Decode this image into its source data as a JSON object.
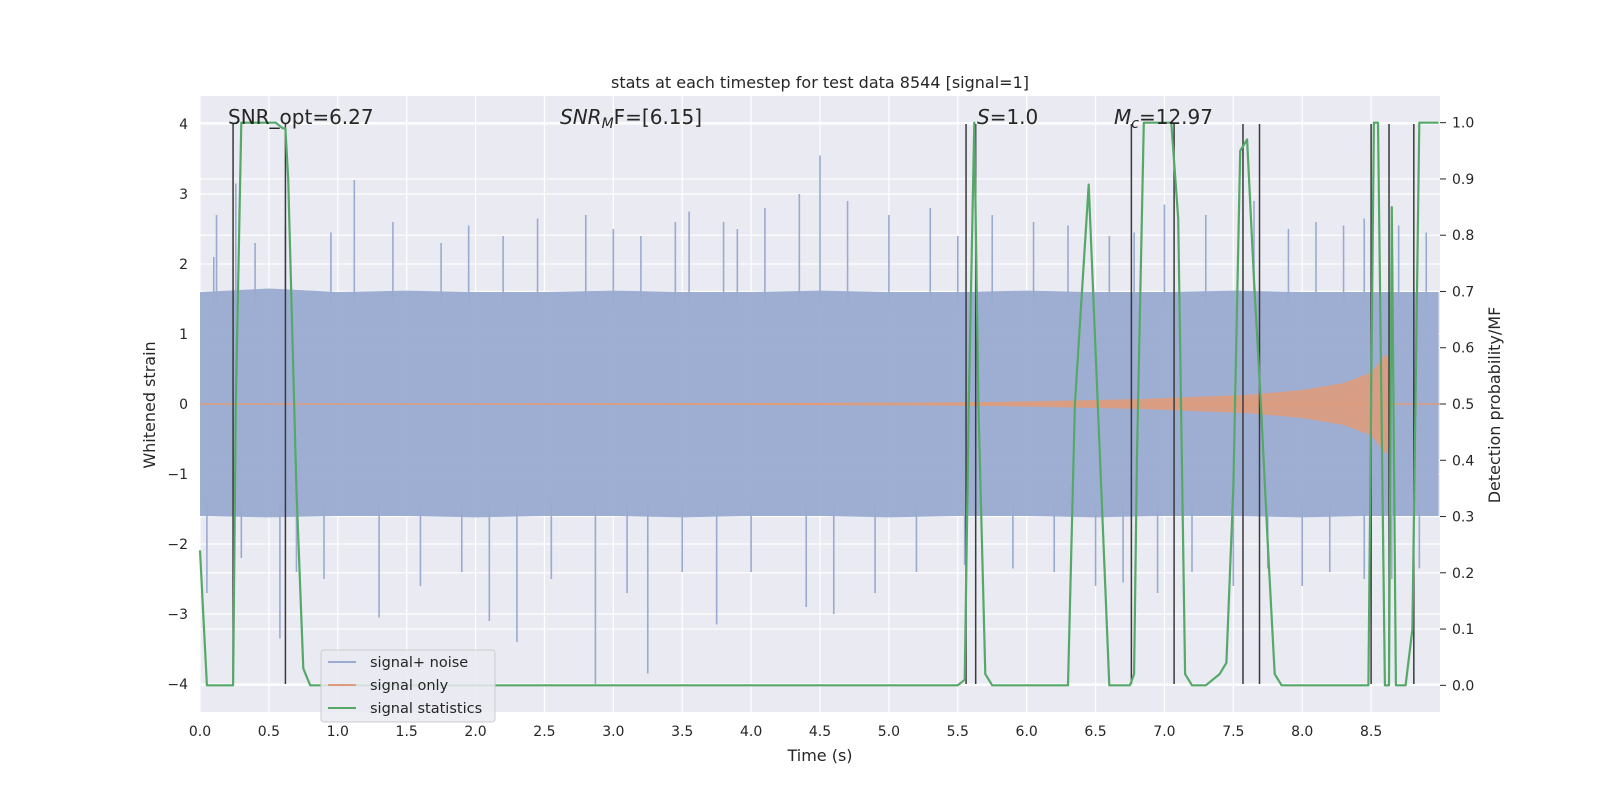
{
  "chart_data": {
    "type": "line",
    "title": "stats at each timestep for test data 8544 [signal=1]",
    "xlabel": "Time (s)",
    "ylabel_left": "Whitened strain",
    "ylabel_right": "Detection probability/MF",
    "xlim": [
      0,
      9.0
    ],
    "ylim_left": [
      -4.4,
      4.4
    ],
    "ylim_right": [
      -0.0474,
      1.0474
    ],
    "x_ticks": [
      "0.0",
      "0.5",
      "1.0",
      "1.5",
      "2.0",
      "2.5",
      "3.0",
      "3.5",
      "4.0",
      "4.5",
      "5.0",
      "5.5",
      "6.0",
      "6.5",
      "7.0",
      "7.5",
      "8.0",
      "8.5"
    ],
    "y_ticks_left": [
      "4",
      "3",
      "2",
      "1",
      "0",
      "−1",
      "−2",
      "−3",
      "−4"
    ],
    "y_ticks_right": [
      "1.0",
      "0.9",
      "0.8",
      "0.7",
      "0.6",
      "0.5",
      "0.4",
      "0.3",
      "0.2",
      "0.1",
      "0.0"
    ],
    "grid": true,
    "legend_position": "lower-left",
    "colors": {
      "background": "#eaeaf2",
      "signal_noise": "#9aabd0",
      "signal_only": "#dd9c7c",
      "statistics": "#55a868",
      "markers": "#3a3a3a",
      "grid": "#ffffff"
    },
    "annotations": {
      "snr_opt": "SNR_opt=6.27",
      "snr_mf_main": "SNR",
      "snr_mf_sub": "M",
      "snr_mf_rest": "F=[6.15]",
      "s_main": "S",
      "s_rest": "=1.0",
      "mc_main": "M",
      "mc_sub": "c",
      "mc_rest": "=12.97"
    },
    "noise_envelope": {
      "x": [
        0,
        0.5,
        1,
        1.5,
        2,
        2.5,
        3,
        3.5,
        4,
        4.5,
        5,
        5.5,
        6,
        6.5,
        7,
        7.5,
        8,
        8.5,
        8.99
      ],
      "upper": [
        1.6,
        1.65,
        1.6,
        1.62,
        1.6,
        1.6,
        1.62,
        1.6,
        1.6,
        1.62,
        1.6,
        1.6,
        1.62,
        1.6,
        1.6,
        1.62,
        1.6,
        1.6,
        1.6
      ],
      "lower": [
        -1.6,
        -1.62,
        -1.6,
        -1.6,
        -1.62,
        -1.6,
        -1.6,
        -1.62,
        -1.6,
        -1.6,
        -1.62,
        -1.6,
        -1.6,
        -1.62,
        -1.6,
        -1.6,
        -1.62,
        -1.6,
        -1.6
      ]
    },
    "noise_spikes_up": [
      {
        "x": 0.1,
        "y": 2.1
      },
      {
        "x": 0.12,
        "y": 2.7
      },
      {
        "x": 0.26,
        "y": 3.15
      },
      {
        "x": 0.4,
        "y": 2.3
      },
      {
        "x": 0.62,
        "y": 2.55
      },
      {
        "x": 0.95,
        "y": 2.45
      },
      {
        "x": 1.12,
        "y": 3.2
      },
      {
        "x": 1.4,
        "y": 2.6
      },
      {
        "x": 1.75,
        "y": 2.3
      },
      {
        "x": 1.95,
        "y": 2.55
      },
      {
        "x": 2.2,
        "y": 2.4
      },
      {
        "x": 2.45,
        "y": 2.65
      },
      {
        "x": 2.8,
        "y": 2.7
      },
      {
        "x": 3.0,
        "y": 2.5
      },
      {
        "x": 3.2,
        "y": 2.4
      },
      {
        "x": 3.45,
        "y": 2.6
      },
      {
        "x": 3.55,
        "y": 2.75
      },
      {
        "x": 3.8,
        "y": 2.6
      },
      {
        "x": 3.9,
        "y": 2.5
      },
      {
        "x": 4.1,
        "y": 2.8
      },
      {
        "x": 4.35,
        "y": 3.0
      },
      {
        "x": 4.5,
        "y": 3.55
      },
      {
        "x": 4.7,
        "y": 2.9
      },
      {
        "x": 5.0,
        "y": 2.7
      },
      {
        "x": 5.3,
        "y": 2.8
      },
      {
        "x": 5.5,
        "y": 2.4
      },
      {
        "x": 5.75,
        "y": 2.7
      },
      {
        "x": 6.05,
        "y": 2.6
      },
      {
        "x": 6.3,
        "y": 2.55
      },
      {
        "x": 6.6,
        "y": 2.4
      },
      {
        "x": 6.78,
        "y": 2.45
      },
      {
        "x": 7.0,
        "y": 2.85
      },
      {
        "x": 7.3,
        "y": 2.7
      },
      {
        "x": 7.65,
        "y": 2.9
      },
      {
        "x": 7.9,
        "y": 2.5
      },
      {
        "x": 8.1,
        "y": 2.6
      },
      {
        "x": 8.3,
        "y": 2.55
      },
      {
        "x": 8.45,
        "y": 2.65
      },
      {
        "x": 8.7,
        "y": 2.55
      },
      {
        "x": 8.9,
        "y": 2.45
      }
    ],
    "noise_spikes_down": [
      {
        "x": 0.05,
        "y": -2.7
      },
      {
        "x": 0.3,
        "y": -2.2
      },
      {
        "x": 0.58,
        "y": -3.35
      },
      {
        "x": 0.7,
        "y": -2.4
      },
      {
        "x": 0.9,
        "y": -2.5
      },
      {
        "x": 1.3,
        "y": -3.05
      },
      {
        "x": 1.6,
        "y": -2.6
      },
      {
        "x": 1.9,
        "y": -2.4
      },
      {
        "x": 2.1,
        "y": -3.1
      },
      {
        "x": 2.3,
        "y": -3.4
      },
      {
        "x": 2.55,
        "y": -2.5
      },
      {
        "x": 2.87,
        "y": -4.0
      },
      {
        "x": 3.1,
        "y": -2.7
      },
      {
        "x": 3.25,
        "y": -3.85
      },
      {
        "x": 3.5,
        "y": -2.4
      },
      {
        "x": 3.75,
        "y": -3.15
      },
      {
        "x": 4.0,
        "y": -2.4
      },
      {
        "x": 4.4,
        "y": -2.9
      },
      {
        "x": 4.6,
        "y": -3.0
      },
      {
        "x": 4.9,
        "y": -2.7
      },
      {
        "x": 5.2,
        "y": -2.4
      },
      {
        "x": 5.55,
        "y": -2.3
      },
      {
        "x": 5.9,
        "y": -2.35
      },
      {
        "x": 6.2,
        "y": -2.4
      },
      {
        "x": 6.5,
        "y": -2.6
      },
      {
        "x": 6.7,
        "y": -2.55
      },
      {
        "x": 6.95,
        "y": -2.7
      },
      {
        "x": 7.2,
        "y": -2.4
      },
      {
        "x": 7.5,
        "y": -2.6
      },
      {
        "x": 7.75,
        "y": -2.35
      },
      {
        "x": 8.0,
        "y": -2.6
      },
      {
        "x": 8.2,
        "y": -2.4
      },
      {
        "x": 8.45,
        "y": -2.5
      },
      {
        "x": 8.65,
        "y": -2.5
      },
      {
        "x": 8.85,
        "y": -2.35
      }
    ],
    "signal_only": {
      "x": [
        0,
        5.2,
        5.8,
        6.3,
        6.8,
        7.2,
        7.6,
        8.0,
        8.3,
        8.5,
        8.6,
        8.62,
        8.65,
        8.99
      ],
      "amplitude": [
        0,
        0.02,
        0.03,
        0.05,
        0.07,
        0.1,
        0.13,
        0.2,
        0.3,
        0.45,
        0.7,
        0.7,
        0.0,
        0.0
      ]
    },
    "series": [
      {
        "name": "signal statistics",
        "x": [
          0.0,
          0.05,
          0.1,
          0.2,
          0.24,
          0.26,
          0.3,
          0.35,
          0.45,
          0.55,
          0.6,
          0.62,
          0.64,
          0.7,
          0.75,
          0.8,
          1.0,
          2.0,
          3.0,
          3.6,
          4.5,
          5.0,
          5.3,
          5.5,
          5.55,
          5.58,
          5.62,
          5.65,
          5.7,
          5.75,
          6.0,
          6.2,
          6.3,
          6.35,
          6.45,
          6.55,
          6.6,
          6.7,
          6.75,
          6.78,
          6.8,
          6.85,
          7.0,
          7.05,
          7.1,
          7.15,
          7.2,
          7.3,
          7.4,
          7.45,
          7.5,
          7.55,
          7.6,
          7.65,
          7.7,
          7.75,
          7.8,
          7.85,
          8.0,
          8.3,
          8.48,
          8.5,
          8.52,
          8.55,
          8.6,
          8.63,
          8.65,
          8.68,
          8.75,
          8.8,
          8.85,
          8.9,
          8.99
        ],
        "y": [
          0.24,
          0.0,
          0.0,
          0.0,
          0.0,
          0.5,
          1.0,
          1.0,
          1.0,
          1.0,
          0.99,
          0.99,
          0.9,
          0.35,
          0.03,
          0.0,
          0.0,
          0.0,
          0.0,
          0.0,
          0.0,
          0.0,
          0.0,
          0.0,
          0.01,
          0.5,
          1.0,
          0.5,
          0.02,
          0.0,
          0.0,
          0.0,
          0.0,
          0.5,
          0.89,
          0.3,
          0.0,
          0.0,
          0.0,
          0.02,
          0.4,
          1.0,
          1.0,
          1.0,
          0.83,
          0.02,
          0.0,
          0.0,
          0.02,
          0.04,
          0.35,
          0.95,
          0.97,
          0.72,
          0.5,
          0.25,
          0.02,
          0.0,
          0.0,
          0.0,
          0.0,
          0.5,
          1.0,
          1.0,
          0.0,
          0.0,
          0.85,
          0.0,
          0.0,
          0.1,
          1.0,
          1.0,
          1.0
        ]
      }
    ],
    "vertical_markers": [
      {
        "x": 0.24,
        "y_low": -4.0,
        "y_high": 4.0
      },
      {
        "x": 0.62,
        "y_low": -4.0,
        "y_high": 4.0
      },
      {
        "x": 5.56,
        "y_low": -4.0,
        "y_high": 4.0
      },
      {
        "x": 5.63,
        "y_low": -4.0,
        "y_high": 4.0
      },
      {
        "x": 6.76,
        "y_low": -4.0,
        "y_high": 4.0
      },
      {
        "x": 7.07,
        "y_low": -4.0,
        "y_high": 4.0
      },
      {
        "x": 7.57,
        "y_low": -4.0,
        "y_high": 4.0
      },
      {
        "x": 7.69,
        "y_low": -4.0,
        "y_high": 4.0
      },
      {
        "x": 8.5,
        "y_low": -4.0,
        "y_high": 4.0
      },
      {
        "x": 8.63,
        "y_low": -4.0,
        "y_high": 4.0
      },
      {
        "x": 8.81,
        "y_low": -4.0,
        "y_high": 4.0
      }
    ],
    "legend": [
      {
        "label": "signal+ noise",
        "color_key": "signal_noise"
      },
      {
        "label": "signal only",
        "color_key": "signal_only"
      },
      {
        "label": "signal statistics",
        "color_key": "statistics"
      }
    ]
  }
}
